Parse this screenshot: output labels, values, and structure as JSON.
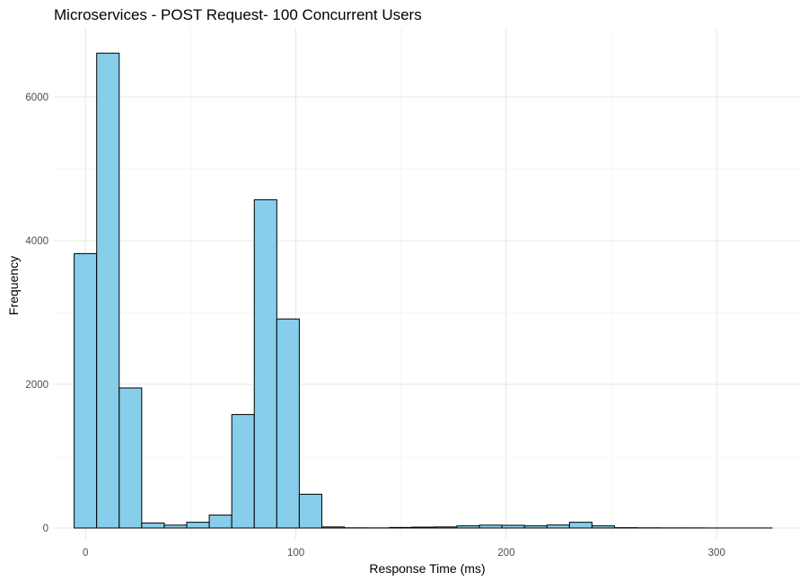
{
  "chart_data": {
    "type": "bar",
    "title": "Microservices - POST Request- 100 Concurrent Users",
    "xlabel": "Response Time (ms)",
    "ylabel": "Frequency",
    "xlim": [
      -15,
      340
    ],
    "ylim": [
      -150,
      6950
    ],
    "x_ticks": [
      0,
      100,
      200,
      300
    ],
    "y_ticks": [
      0,
      2000,
      4000,
      6000
    ],
    "bin_width": 10.7,
    "bins": [
      {
        "x": 0,
        "count": 3820
      },
      {
        "x": 10.7,
        "count": 6610
      },
      {
        "x": 21.4,
        "count": 1950
      },
      {
        "x": 32.1,
        "count": 70
      },
      {
        "x": 42.8,
        "count": 40
      },
      {
        "x": 53.5,
        "count": 80
      },
      {
        "x": 64.2,
        "count": 180
      },
      {
        "x": 74.9,
        "count": 1580
      },
      {
        "x": 85.6,
        "count": 4570
      },
      {
        "x": 96.3,
        "count": 2910
      },
      {
        "x": 107.0,
        "count": 470
      },
      {
        "x": 117.7,
        "count": 15
      },
      {
        "x": 128.4,
        "count": 3
      },
      {
        "x": 139.1,
        "count": 2
      },
      {
        "x": 149.8,
        "count": 8
      },
      {
        "x": 160.5,
        "count": 12
      },
      {
        "x": 171.2,
        "count": 15
      },
      {
        "x": 181.9,
        "count": 30
      },
      {
        "x": 192.6,
        "count": 40
      },
      {
        "x": 203.3,
        "count": 38
      },
      {
        "x": 214.0,
        "count": 30
      },
      {
        "x": 224.7,
        "count": 42
      },
      {
        "x": 235.4,
        "count": 80
      },
      {
        "x": 246.1,
        "count": 30
      },
      {
        "x": 256.8,
        "count": 5
      },
      {
        "x": 267.5,
        "count": 3
      },
      {
        "x": 278.2,
        "count": 2
      },
      {
        "x": 288.9,
        "count": 2
      },
      {
        "x": 299.6,
        "count": 1
      },
      {
        "x": 310.3,
        "count": 1
      },
      {
        "x": 321.0,
        "count": 1
      }
    ],
    "bar_fill": "#87ceeb",
    "bar_stroke": "#000000",
    "grid": true,
    "legend": "none"
  }
}
